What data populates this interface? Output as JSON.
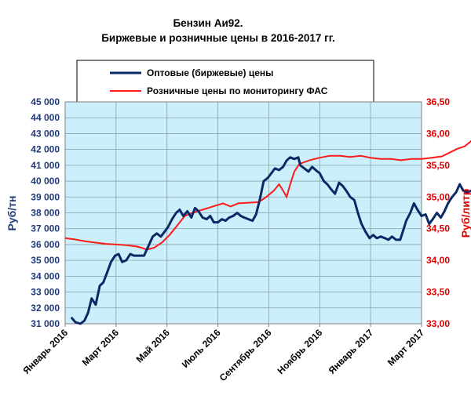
{
  "chart_data": {
    "type": "line",
    "title_line1": "Бензин  Аи92.",
    "title_line2": "Биржевые  и  розничные  цены  в  2016-2017  гг.",
    "ylabel_left": "Руб/тн",
    "ylabel_right": "Руб/литр",
    "y_left_range": [
      31000,
      45000
    ],
    "y_right_range": [
      33.0,
      36.5
    ],
    "y_left_ticks": [
      "31 000",
      "32 000",
      "33 000",
      "34 000",
      "35 000",
      "36 000",
      "37 000",
      "38 000",
      "39 000",
      "40 000",
      "41 000",
      "42 000",
      "43 000",
      "44 000",
      "45 000"
    ],
    "y_right_ticks": [
      "33,00",
      "33,50",
      "34,00",
      "34,50",
      "35,00",
      "35,50",
      "36,00",
      "36,50"
    ],
    "x_ticks": [
      "Январь 2016",
      "Март 2016",
      "Май 2016",
      "Июль 2016",
      "Сентябрь 2016",
      "Ноябрь 2016",
      "Январь 2017",
      "Март 2017"
    ],
    "grid": true,
    "legend_position": "top",
    "colors": {
      "wholesale": "#0a2a66",
      "retail": "#ff1a1a",
      "plot_bg": "#ccf0fb"
    },
    "series": [
      {
        "name": "Оптовые (биржевые) цены",
        "axis": "left",
        "points": [
          [
            0.12,
            31400
          ],
          [
            0.2,
            31100
          ],
          [
            0.3,
            31000
          ],
          [
            0.38,
            31200
          ],
          [
            0.45,
            31700
          ],
          [
            0.52,
            32600
          ],
          [
            0.6,
            32200
          ],
          [
            0.68,
            33400
          ],
          [
            0.75,
            33600
          ],
          [
            0.82,
            34200
          ],
          [
            0.9,
            34900
          ],
          [
            0.98,
            35300
          ],
          [
            1.05,
            35400
          ],
          [
            1.12,
            34900
          ],
          [
            1.2,
            35000
          ],
          [
            1.28,
            35400
          ],
          [
            1.35,
            35300
          ],
          [
            1.45,
            35300
          ],
          [
            1.55,
            35300
          ],
          [
            1.65,
            36000
          ],
          [
            1.72,
            36500
          ],
          [
            1.8,
            36700
          ],
          [
            1.88,
            36500
          ],
          [
            1.95,
            36800
          ],
          [
            2.02,
            37100
          ],
          [
            2.1,
            37600
          ],
          [
            2.18,
            38000
          ],
          [
            2.25,
            38200
          ],
          [
            2.32,
            37800
          ],
          [
            2.4,
            38100
          ],
          [
            2.48,
            37700
          ],
          [
            2.55,
            38300
          ],
          [
            2.62,
            38100
          ],
          [
            2.7,
            37700
          ],
          [
            2.78,
            37600
          ],
          [
            2.85,
            37800
          ],
          [
            2.92,
            37400
          ],
          [
            3.0,
            37400
          ],
          [
            3.08,
            37600
          ],
          [
            3.15,
            37500
          ],
          [
            3.22,
            37700
          ],
          [
            3.3,
            37800
          ],
          [
            3.38,
            38000
          ],
          [
            3.45,
            37800
          ],
          [
            3.52,
            37700
          ],
          [
            3.6,
            37600
          ],
          [
            3.68,
            37500
          ],
          [
            3.75,
            37900
          ],
          [
            3.82,
            38800
          ],
          [
            3.9,
            40000
          ],
          [
            3.98,
            40200
          ],
          [
            4.05,
            40500
          ],
          [
            4.12,
            40800
          ],
          [
            4.2,
            40700
          ],
          [
            4.28,
            40900
          ],
          [
            4.35,
            41300
          ],
          [
            4.42,
            41500
          ],
          [
            4.5,
            41400
          ],
          [
            4.58,
            41500
          ],
          [
            4.62,
            41000
          ],
          [
            4.7,
            40800
          ],
          [
            4.78,
            40600
          ],
          [
            4.85,
            40900
          ],
          [
            4.92,
            40700
          ],
          [
            5.0,
            40500
          ],
          [
            5.08,
            40000
          ],
          [
            5.15,
            39800
          ],
          [
            5.22,
            39500
          ],
          [
            5.3,
            39200
          ],
          [
            5.38,
            39900
          ],
          [
            5.45,
            39700
          ],
          [
            5.52,
            39400
          ],
          [
            5.6,
            39000
          ],
          [
            5.68,
            38800
          ],
          [
            5.75,
            38000
          ],
          [
            5.82,
            37300
          ],
          [
            5.9,
            36800
          ],
          [
            5.98,
            36400
          ],
          [
            6.05,
            36600
          ],
          [
            6.12,
            36400
          ],
          [
            6.2,
            36500
          ],
          [
            6.28,
            36400
          ],
          [
            6.35,
            36300
          ],
          [
            6.42,
            36500
          ],
          [
            6.5,
            36300
          ],
          [
            6.58,
            36300
          ],
          [
            6.62,
            36700
          ],
          [
            6.7,
            37500
          ],
          [
            6.78,
            38000
          ],
          [
            6.85,
            38600
          ],
          [
            6.92,
            38200
          ],
          [
            7.0,
            37800
          ],
          [
            7.08,
            37900
          ],
          [
            7.15,
            37300
          ],
          [
            7.22,
            37600
          ],
          [
            7.3,
            38000
          ],
          [
            7.38,
            37700
          ],
          [
            7.45,
            38100
          ],
          [
            7.52,
            38600
          ],
          [
            7.6,
            39000
          ],
          [
            7.68,
            39300
          ],
          [
            7.75,
            39800
          ],
          [
            7.82,
            39400
          ],
          [
            7.9,
            39300
          ],
          [
            7.98,
            39400
          ],
          [
            8.05,
            39700
          ],
          [
            8.12,
            39200
          ],
          [
            8.2,
            39400
          ],
          [
            8.28,
            39500
          ],
          [
            8.35,
            39400
          ],
          [
            8.42,
            39400
          ],
          [
            8.5,
            39300
          ],
          [
            8.55,
            39900
          ],
          [
            8.62,
            40600
          ],
          [
            8.68,
            40200
          ],
          [
            8.72,
            39800
          ],
          [
            8.78,
            39700
          ],
          [
            8.85,
            39500
          ],
          [
            8.92,
            39800
          ],
          [
            8.98,
            39600
          ],
          [
            9.05,
            39700
          ],
          [
            9.12,
            39600
          ],
          [
            9.2,
            39800
          ],
          [
            9.28,
            39800
          ],
          [
            9.35,
            39900
          ],
          [
            9.42,
            39700
          ]
        ]
      },
      {
        "name": "Розничные цены по мониторингу  ФАС",
        "axis": "right",
        "points": [
          [
            0.0,
            34.35
          ],
          [
            0.2,
            34.33
          ],
          [
            0.4,
            34.3
          ],
          [
            0.6,
            34.28
          ],
          [
            0.8,
            34.26
          ],
          [
            1.0,
            34.25
          ],
          [
            1.2,
            34.24
          ],
          [
            1.4,
            34.22
          ],
          [
            1.5,
            34.2
          ],
          [
            1.6,
            34.17
          ],
          [
            1.75,
            34.2
          ],
          [
            1.9,
            34.28
          ],
          [
            2.05,
            34.4
          ],
          [
            2.2,
            34.55
          ],
          [
            2.35,
            34.7
          ],
          [
            2.5,
            34.75
          ],
          [
            2.7,
            34.8
          ],
          [
            2.9,
            34.85
          ],
          [
            3.1,
            34.9
          ],
          [
            3.25,
            34.85
          ],
          [
            3.4,
            34.9
          ],
          [
            3.6,
            34.91
          ],
          [
            3.8,
            34.92
          ],
          [
            3.95,
            35.0
          ],
          [
            4.1,
            35.1
          ],
          [
            4.2,
            35.2
          ],
          [
            4.28,
            35.1
          ],
          [
            4.35,
            35.0
          ],
          [
            4.42,
            35.2
          ],
          [
            4.5,
            35.4
          ],
          [
            4.6,
            35.52
          ],
          [
            4.8,
            35.58
          ],
          [
            5.0,
            35.62
          ],
          [
            5.2,
            35.65
          ],
          [
            5.4,
            35.65
          ],
          [
            5.6,
            35.63
          ],
          [
            5.8,
            35.65
          ],
          [
            6.0,
            35.62
          ],
          [
            6.2,
            35.6
          ],
          [
            6.4,
            35.6
          ],
          [
            6.6,
            35.58
          ],
          [
            6.8,
            35.6
          ],
          [
            7.0,
            35.6
          ],
          [
            7.2,
            35.62
          ],
          [
            7.4,
            35.64
          ],
          [
            7.55,
            35.7
          ],
          [
            7.7,
            35.76
          ],
          [
            7.85,
            35.8
          ],
          [
            8.0,
            35.9
          ],
          [
            8.1,
            35.92
          ],
          [
            8.18,
            35.9
          ],
          [
            8.28,
            35.97
          ],
          [
            8.4,
            35.98
          ],
          [
            8.52,
            36.0
          ],
          [
            8.65,
            36.02
          ]
        ]
      }
    ]
  }
}
